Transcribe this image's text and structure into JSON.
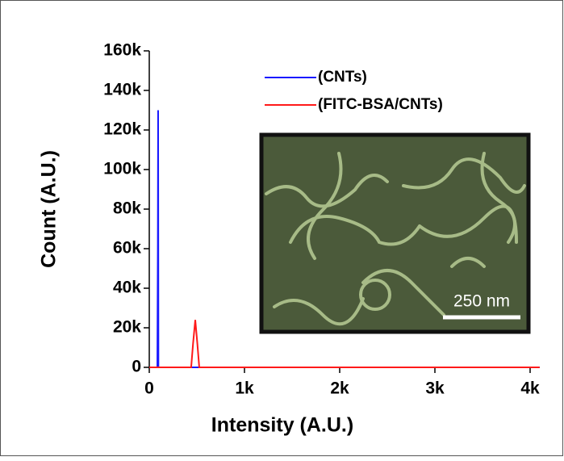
{
  "chart_data": {
    "type": "line",
    "xlabel": "Intensity (A.U.)",
    "ylabel": "Count (A.U.)",
    "xlim": [
      0,
      4100
    ],
    "ylim": [
      0,
      160000
    ],
    "xticks": [
      0,
      {
        "value": 1000,
        "label": "1k"
      },
      {
        "value": 2000,
        "label": "2k"
      },
      {
        "value": 3000,
        "label": "3k"
      },
      {
        "value": 4000,
        "label": "4k"
      }
    ],
    "yticks": [
      0,
      {
        "value": 20000,
        "label": "20k"
      },
      {
        "value": 40000,
        "label": "40k"
      },
      {
        "value": 60000,
        "label": "60k"
      },
      {
        "value": 80000,
        "label": "80k"
      },
      {
        "value": 100000,
        "label": "100k"
      },
      {
        "value": 120000,
        "label": "120k"
      },
      {
        "value": 140000,
        "label": "140k"
      },
      {
        "value": 160000,
        "label": "160k"
      }
    ],
    "series": [
      {
        "name": "(CNTs)",
        "color": "#1a1aff",
        "x": [
          0,
          85,
          90,
          93,
          96,
          102,
          4100
        ],
        "values": [
          0,
          0,
          60000,
          130000,
          0,
          0,
          0
        ]
      },
      {
        "name": "(FITC-BSA/CNTs)",
        "color": "#ff1a1a",
        "x": [
          0,
          440,
          460,
          483,
          505,
          525,
          4100
        ],
        "values": [
          0,
          0,
          12000,
          24000,
          12000,
          0,
          0
        ]
      }
    ],
    "inset_scale_label": "250 nm"
  }
}
